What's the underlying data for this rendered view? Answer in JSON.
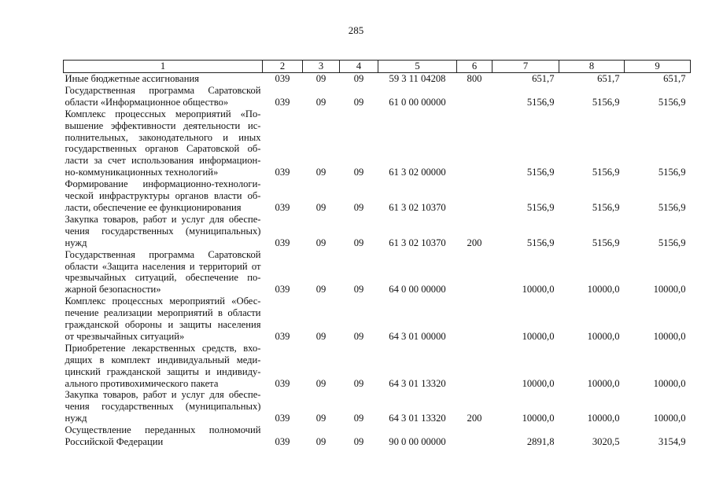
{
  "page_number": "285",
  "headers": [
    "1",
    "2",
    "3",
    "4",
    "5",
    "6",
    "7",
    "8",
    "9"
  ],
  "rows": [
    {
      "lines": [
        "Иные бюджетные ассигнования"
      ],
      "c2": "039",
      "c3": "09",
      "c4": "09",
      "c5": "59 3 11 04208",
      "c6": "800",
      "c7": "651,7",
      "c8": "651,7",
      "c9": "651,7"
    },
    {
      "lines": [
        "Государственная программа Саратовской",
        "области «Информационное общество»"
      ],
      "c2": "039",
      "c3": "09",
      "c4": "09",
      "c5": "61 0 00 00000",
      "c6": "",
      "c7": "5156,9",
      "c8": "5156,9",
      "c9": "5156,9"
    },
    {
      "lines": [
        "Комплекс процессных мероприятий «По-",
        "вышение эффективности деятельности ис-",
        "полнительных, законодательного и иных",
        "государственных органов Саратовской об-",
        "ласти за счет использования информацион-",
        "но-коммуникационных технологий»"
      ],
      "c2": "039",
      "c3": "09",
      "c4": "09",
      "c5": "61 3 02 00000",
      "c6": "",
      "c7": "5156,9",
      "c8": "5156,9",
      "c9": "5156,9"
    },
    {
      "lines": [
        "Формирование информационно-технологи-",
        "ческой инфраструктуры органов власти об-",
        "ласти, обеспечение ее функционирования"
      ],
      "c2": "039",
      "c3": "09",
      "c4": "09",
      "c5": "61 3 02 10370",
      "c6": "",
      "c7": "5156,9",
      "c8": "5156,9",
      "c9": "5156,9"
    },
    {
      "lines": [
        "Закупка товаров, работ и услуг для обеспе-",
        "чения государственных (муниципальных)",
        "нужд"
      ],
      "c2": "039",
      "c3": "09",
      "c4": "09",
      "c5": "61 3 02 10370",
      "c6": "200",
      "c7": "5156,9",
      "c8": "5156,9",
      "c9": "5156,9"
    },
    {
      "lines": [
        "Государственная программа Саратовской",
        "области «Защита населения и территорий от",
        "чрезвычайных ситуаций, обеспечение по-",
        "жарной безопасности»"
      ],
      "c2": "039",
      "c3": "09",
      "c4": "09",
      "c5": "64 0 00 00000",
      "c6": "",
      "c7": "10000,0",
      "c8": "10000,0",
      "c9": "10000,0"
    },
    {
      "lines": [
        "Комплекс процессных мероприятий «Обес-",
        "печение реализации мероприятий в области",
        "гражданской обороны и защиты населения",
        "от чрезвычайных ситуаций»"
      ],
      "c2": "039",
      "c3": "09",
      "c4": "09",
      "c5": "64 3 01 00000",
      "c6": "",
      "c7": "10000,0",
      "c8": "10000,0",
      "c9": "10000,0"
    },
    {
      "lines": [
        "Приобретение лекарственных средств, вхо-",
        "дящих в комплект индивидуальный меди-",
        "цинский гражданской защиты и индивиду-",
        "ального противохимического пакета"
      ],
      "c2": "039",
      "c3": "09",
      "c4": "09",
      "c5": "64 3 01 13320",
      "c6": "",
      "c7": "10000,0",
      "c8": "10000,0",
      "c9": "10000,0"
    },
    {
      "lines": [
        "Закупка товаров, работ и услуг для обеспе-",
        "чения государственных (муниципальных)",
        "нужд"
      ],
      "c2": "039",
      "c3": "09",
      "c4": "09",
      "c5": "64 3 01 13320",
      "c6": "200",
      "c7": "10000,0",
      "c8": "10000,0",
      "c9": "10000,0"
    },
    {
      "lines": [
        "Осуществление переданных полномочий",
        "Российской Федерации"
      ],
      "c2": "039",
      "c3": "09",
      "c4": "09",
      "c5": "90 0 00 00000",
      "c6": "",
      "c7": "2891,8",
      "c8": "3020,5",
      "c9": "3154,9"
    }
  ]
}
